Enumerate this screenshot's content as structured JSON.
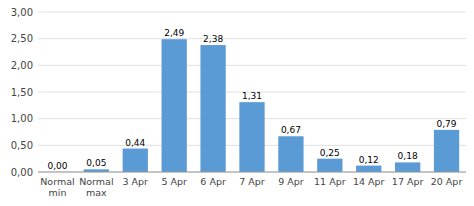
{
  "chart_data": {
    "type": "bar",
    "categories": [
      "Normal\nmin",
      "Normal\nmax",
      "3 Apr",
      "5 Apr",
      "6 Apr",
      "7 Apr",
      "9 Apr",
      "11 Apr",
      "14 Apr",
      "17 Apr",
      "20 Apr"
    ],
    "values": [
      0.0,
      0.05,
      0.44,
      2.49,
      2.38,
      1.31,
      0.67,
      0.25,
      0.12,
      0.18,
      0.79
    ],
    "value_labels": [
      "0,00",
      "0,05",
      "0,44",
      "2,49",
      "2,38",
      "1,31",
      "0,67",
      "0,25",
      "0,12",
      "0,18",
      "0,79"
    ],
    "data_labels": true,
    "color": "#5B9BD5",
    "ylim": [
      0,
      3.0
    ],
    "yticks": [
      {
        "value": 0.0,
        "label": "0,00"
      },
      {
        "value": 0.5,
        "label": "0,50"
      },
      {
        "value": 1.0,
        "label": "1,00"
      },
      {
        "value": 1.5,
        "label": "1,50"
      },
      {
        "value": 2.0,
        "label": "2,00"
      },
      {
        "value": 2.5,
        "label": "2,50"
      },
      {
        "value": 3.0,
        "label": "3,00"
      }
    ],
    "grid": true
  }
}
